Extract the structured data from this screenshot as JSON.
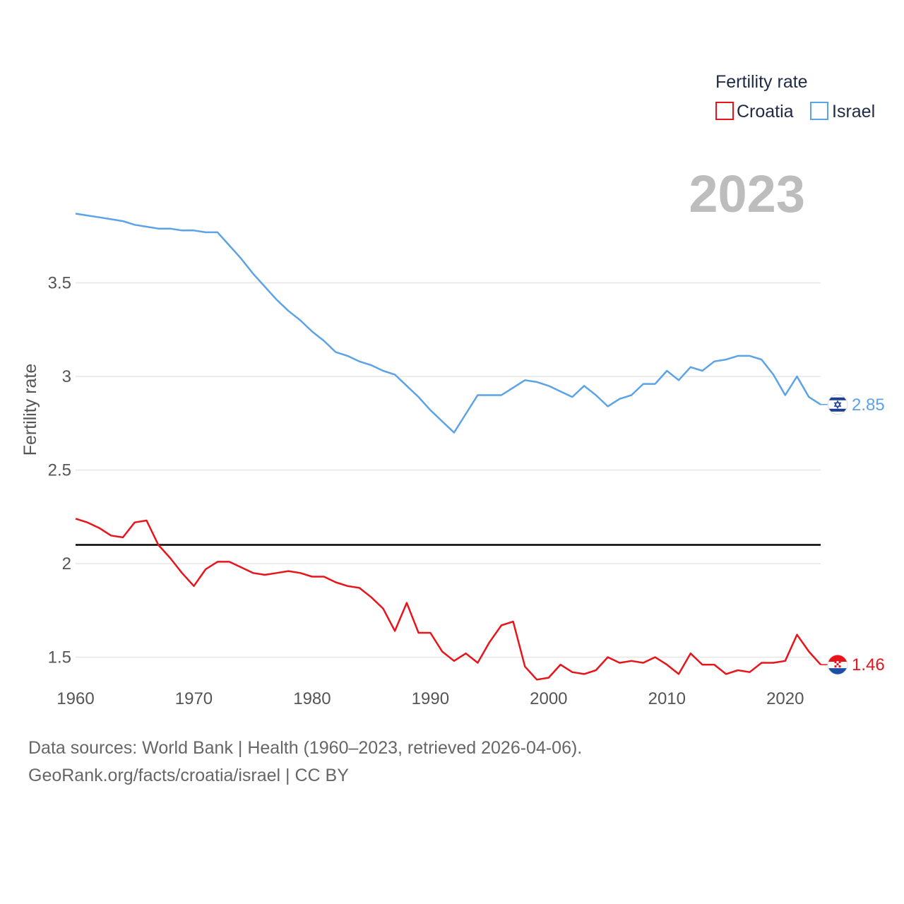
{
  "chart_data": {
    "type": "line",
    "title": "",
    "legend_title": "Fertility rate",
    "year_label": "2023",
    "xlabel": "",
    "ylabel": "Fertility rate",
    "xlim": [
      1960,
      2023
    ],
    "ylim": [
      1.2,
      4.2
    ],
    "x_ticks": [
      1960,
      1970,
      1980,
      1990,
      2000,
      2010,
      2020
    ],
    "y_ticks": [
      1.5,
      2,
      2.5,
      3,
      3.5
    ],
    "y_tick_labels": [
      "1.5",
      "2",
      "2.5",
      "3",
      "3.5"
    ],
    "reference_line": 2.1,
    "legend_position": "top-right",
    "series": [
      {
        "name": "Croatia",
        "color": "#e8141b",
        "end_label": "1.46",
        "flag": "croatia-flag",
        "x": [
          1960,
          1961,
          1962,
          1963,
          1964,
          1965,
          1966,
          1967,
          1968,
          1969,
          1970,
          1971,
          1972,
          1973,
          1974,
          1975,
          1976,
          1977,
          1978,
          1979,
          1980,
          1981,
          1982,
          1983,
          1984,
          1985,
          1986,
          1987,
          1988,
          1989,
          1990,
          1991,
          1992,
          1993,
          1994,
          1995,
          1996,
          1997,
          1998,
          1999,
          2000,
          2001,
          2002,
          2003,
          2004,
          2005,
          2006,
          2007,
          2008,
          2009,
          2010,
          2011,
          2012,
          2013,
          2014,
          2015,
          2016,
          2017,
          2018,
          2019,
          2020,
          2021,
          2022,
          2023
        ],
        "values": [
          2.24,
          2.22,
          2.19,
          2.15,
          2.14,
          2.22,
          2.23,
          2.1,
          2.03,
          1.95,
          1.88,
          1.97,
          2.01,
          2.01,
          1.98,
          1.95,
          1.94,
          1.95,
          1.96,
          1.95,
          1.93,
          1.93,
          1.9,
          1.88,
          1.87,
          1.82,
          1.76,
          1.64,
          1.79,
          1.63,
          1.63,
          1.53,
          1.48,
          1.52,
          1.47,
          1.58,
          1.67,
          1.69,
          1.45,
          1.38,
          1.39,
          1.46,
          1.42,
          1.41,
          1.43,
          1.5,
          1.47,
          1.48,
          1.47,
          1.5,
          1.46,
          1.41,
          1.52,
          1.46,
          1.46,
          1.41,
          1.43,
          1.42,
          1.47,
          1.47,
          1.48,
          1.62,
          1.53,
          1.46
        ]
      },
      {
        "name": "Israel",
        "color": "#5ba3e6",
        "end_label": "2.85",
        "flag": "israel-flag",
        "x": [
          1960,
          1961,
          1962,
          1963,
          1964,
          1965,
          1966,
          1967,
          1968,
          1969,
          1970,
          1971,
          1972,
          1973,
          1974,
          1975,
          1976,
          1977,
          1978,
          1979,
          1980,
          1981,
          1982,
          1983,
          1984,
          1985,
          1986,
          1987,
          1988,
          1989,
          1990,
          1991,
          1992,
          1993,
          1994,
          1995,
          1996,
          1997,
          1998,
          1999,
          2000,
          2001,
          2002,
          2003,
          2004,
          2005,
          2006,
          2007,
          2008,
          2009,
          2010,
          2011,
          2012,
          2013,
          2014,
          2015,
          2016,
          2017,
          2018,
          2019,
          2020,
          2021,
          2022,
          2023
        ],
        "values": [
          3.87,
          3.86,
          3.85,
          3.84,
          3.83,
          3.81,
          3.8,
          3.79,
          3.79,
          3.78,
          3.78,
          3.77,
          3.77,
          3.7,
          3.63,
          3.55,
          3.48,
          3.41,
          3.35,
          3.3,
          3.24,
          3.19,
          3.13,
          3.11,
          3.08,
          3.06,
          3.03,
          3.01,
          2.95,
          2.89,
          2.82,
          2.76,
          2.7,
          2.8,
          2.9,
          2.9,
          2.9,
          2.94,
          2.98,
          2.97,
          2.95,
          2.92,
          2.89,
          2.95,
          2.9,
          2.84,
          2.88,
          2.9,
          2.96,
          2.96,
          3.03,
          2.98,
          3.05,
          3.03,
          3.08,
          3.09,
          3.11,
          3.11,
          3.09,
          3.01,
          2.9,
          3.0,
          2.89,
          2.85
        ]
      }
    ]
  },
  "source": {
    "line1": "Data sources: World Bank | Health (1960–2023, retrieved 2026-04-06).",
    "line2": "GeoRank.org/facts/croatia/israel | CC BY"
  }
}
